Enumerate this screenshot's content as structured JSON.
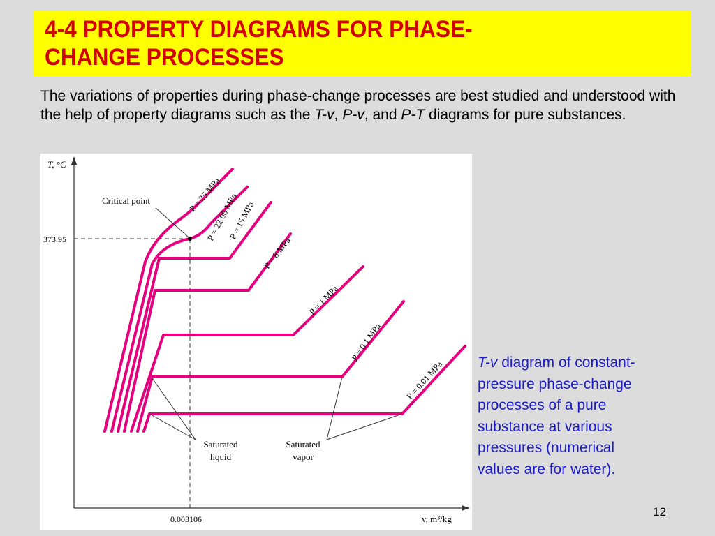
{
  "slide": {
    "title_line1": "4-4 PROPERTY DIAGRAMS FOR PHASE-",
    "title_line2": "CHANGE PROCESSES",
    "intro_part1": "The variations of properties during phase-change processes are best studied and understood with the help of property diagrams such as the ",
    "intro_tv": "T-v",
    "intro_sep1": ", ",
    "intro_pv": "P-v",
    "intro_sep2": ", and ",
    "intro_pt": "P-T",
    "intro_part2": " diagrams for pure substances.",
    "caption_italic": "T-v",
    "caption_text": " diagram of constant-pressure phase-change processes of a pure substance at various pressures (numerical values are for water).",
    "page_number": "12"
  },
  "diagram": {
    "y_axis_label": "T, °C",
    "x_axis_label": "v, m³/kg",
    "critical_temperature_label": "373.95",
    "critical_volume_label": "0.003106",
    "critical_point_label": "Critical point",
    "saturated_liquid_label_line1": "Saturated",
    "saturated_liquid_label_line2": "liquid",
    "saturated_vapor_label_line1": "Saturated",
    "saturated_vapor_label_line2": "vapor",
    "isobars": [
      {
        "label": "P = 25 MPa"
      },
      {
        "label": "P = 22.06 MPa"
      },
      {
        "label": "P = 15 MPa"
      },
      {
        "label": "P = 8 MPa"
      },
      {
        "label": "P = 1 MPa"
      },
      {
        "label": "P = 0.1 MPa"
      },
      {
        "label": "P = 0.01 MPa"
      }
    ],
    "line_color": "#e6007e"
  }
}
